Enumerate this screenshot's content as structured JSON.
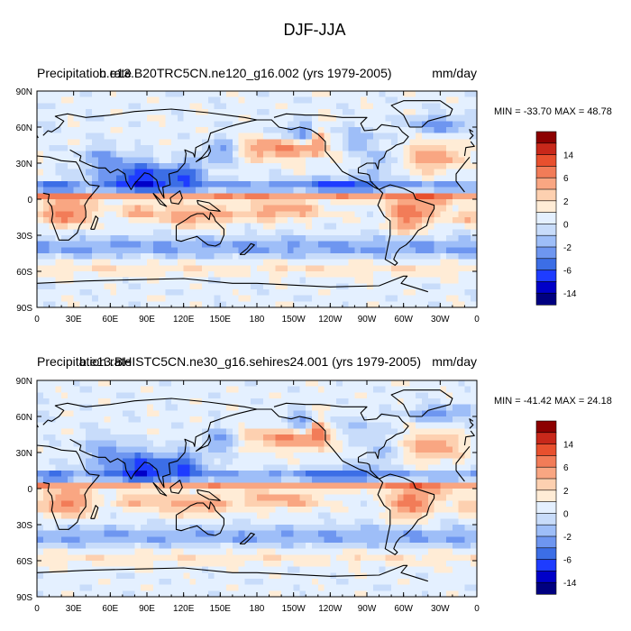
{
  "figure": {
    "title": "DJF-JJA"
  },
  "colors": {
    "scale": [
      "#000080",
      "#0000c8",
      "#1e3cff",
      "#3c6ee6",
      "#6e96f0",
      "#9ebef8",
      "#c8dcfa",
      "#e4f0ff",
      "#ffecd6",
      "#fdd0b0",
      "#f9a682",
      "#f27c58",
      "#e8502e",
      "#c8281a",
      "#8c0000"
    ]
  },
  "chart_data": [
    {
      "type": "heatmap",
      "left_title": "Precipitation rate",
      "center_title": "b.e13.B20TRC5CN.ne120_g16.002 (yrs 1979-2005)",
      "units": "mm/day",
      "stats": "MIN = -33.70 MAX =  48.78",
      "x_ticks": [
        "0",
        "30E",
        "60E",
        "90E",
        "120E",
        "150E",
        "180",
        "150W",
        "120W",
        "90W",
        "60W",
        "30W",
        "0"
      ],
      "y_ticks": [
        "90N",
        "60N",
        "30N",
        "0",
        "30S",
        "60S",
        "90S"
      ],
      "xlim": [
        0,
        360
      ],
      "ylim": [
        -90,
        90
      ],
      "colorbar_labels": [
        "14",
        "6",
        "2",
        "0",
        "-2",
        "-6",
        "-14"
      ]
    },
    {
      "type": "heatmap",
      "left_title": "Precipitation rate",
      "center_title": "b.e13.BHISTC5CN.ne30_g16.sehires24.001 (yrs 1979-2005)",
      "units": "mm/day",
      "stats": "MIN = -41.42 MAX =  24.18",
      "x_ticks": [
        "0",
        "30E",
        "60E",
        "90E",
        "120E",
        "150E",
        "180",
        "150W",
        "120W",
        "90W",
        "60W",
        "30W",
        "0"
      ],
      "y_ticks": [
        "90N",
        "60N",
        "30N",
        "0",
        "30S",
        "60S",
        "90S"
      ],
      "xlim": [
        0,
        360
      ],
      "ylim": [
        -90,
        90
      ],
      "colorbar_labels": [
        "14",
        "6",
        "2",
        "0",
        "-2",
        "-6",
        "-14"
      ]
    }
  ]
}
